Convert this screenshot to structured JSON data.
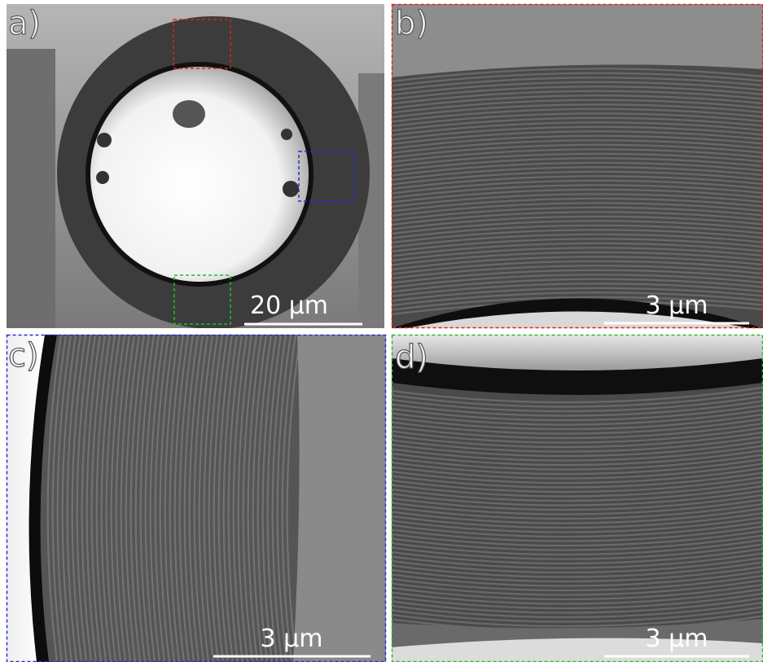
{
  "panels": [
    {
      "label": "a)",
      "scale_bar": "20 µm"
    },
    {
      "label": "b)",
      "scale_bar": "3 µm"
    },
    {
      "label": "c)",
      "scale_bar": "3 µm"
    },
    {
      "label": "d)",
      "scale_bar": "3 µm"
    }
  ]
}
